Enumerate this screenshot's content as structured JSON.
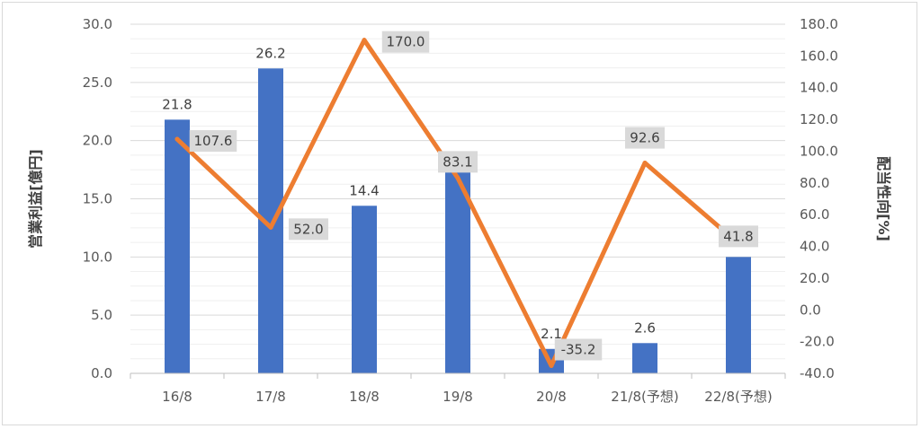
{
  "chart_data": {
    "type": "bar+line",
    "categories": [
      "16/8",
      "17/8",
      "18/8",
      "19/8",
      "20/8",
      "21/8(予想)",
      "22/8(予想)"
    ],
    "series": [
      {
        "name": "営業利益[億円]",
        "type": "bar",
        "axis": "left",
        "values": [
          21.8,
          26.2,
          14.4,
          17.8,
          2.1,
          2.6,
          10.0
        ],
        "labels": [
          "21.8",
          "26.2",
          "14.4",
          "",
          "2.1",
          "2.6",
          "10.0"
        ],
        "color": "#4472c4"
      },
      {
        "name": "配当性向[%]",
        "type": "line",
        "axis": "right",
        "values": [
          107.6,
          52.0,
          170.0,
          83.1,
          -35.2,
          92.6,
          41.8
        ],
        "labels": [
          "107.6",
          "52.0",
          "170.0",
          "83.1",
          "-35.2",
          "92.6",
          "41.8"
        ],
        "color": "#ed7d31"
      }
    ],
    "left_axis": {
      "title": "営業利益[億円]",
      "range": [
        0,
        30
      ],
      "ticks": [
        "0.0",
        "5.0",
        "10.0",
        "15.0",
        "20.0",
        "25.0",
        "30.0"
      ]
    },
    "right_axis": {
      "title": "配当性向[%]",
      "range": [
        -40,
        180
      ],
      "ticks": [
        "-40.0",
        "-20.0",
        "0.0",
        "20.0",
        "40.0",
        "60.0",
        "80.0",
        "100.0",
        "120.0",
        "140.0",
        "160.0",
        "180.0"
      ]
    },
    "grid": true,
    "label_box_color": "#d9d9d9"
  }
}
